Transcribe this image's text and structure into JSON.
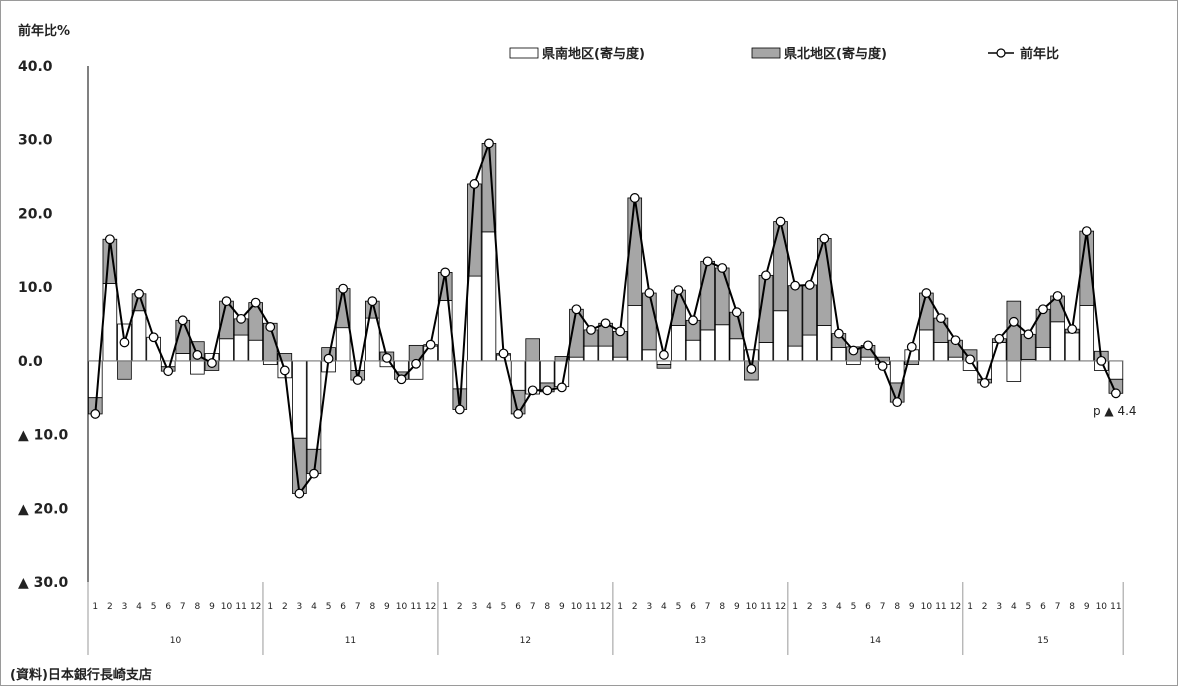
{
  "chart_data": {
    "type": "bar",
    "y_axis_title": "前年比%",
    "ylim": [
      -30,
      40
    ],
    "y_ticks": [
      {
        "value": 40,
        "label": "40.0"
      },
      {
        "value": 30,
        "label": "30.0"
      },
      {
        "value": 20,
        "label": "20.0"
      },
      {
        "value": 10,
        "label": "10.0"
      },
      {
        "value": 0,
        "label": "0.0"
      },
      {
        "value": -10,
        "label": "▲ 10.0"
      },
      {
        "value": -20,
        "label": "▲ 20.0"
      },
      {
        "value": -30,
        "label": "▲ 30.0"
      }
    ],
    "legend": [
      {
        "key": "south",
        "label": "県南地区(寄与度)",
        "color": "#ffffff"
      },
      {
        "key": "north",
        "label": "県北地区(寄与度)",
        "color": "#a6a6a6"
      },
      {
        "key": "yoy",
        "label": "前年比",
        "color": "#000000"
      }
    ],
    "years": [
      {
        "label": "10",
        "months": [
          "1",
          "2",
          "3",
          "4",
          "5",
          "6",
          "7",
          "8",
          "9",
          "10",
          "11",
          "12"
        ]
      },
      {
        "label": "11",
        "months": [
          "1",
          "2",
          "3",
          "4",
          "5",
          "6",
          "7",
          "8",
          "9",
          "10",
          "11",
          "12"
        ]
      },
      {
        "label": "12",
        "months": [
          "1",
          "2",
          "3",
          "4",
          "5",
          "6",
          "7",
          "8",
          "9",
          "10",
          "11",
          "12"
        ]
      },
      {
        "label": "13",
        "months": [
          "1",
          "2",
          "3",
          "4",
          "5",
          "6",
          "7",
          "8",
          "9",
          "10",
          "11",
          "12"
        ]
      },
      {
        "label": "14",
        "months": [
          "1",
          "2",
          "3",
          "4",
          "5",
          "6",
          "7",
          "8",
          "9",
          "10",
          "11",
          "12"
        ]
      },
      {
        "label": "15",
        "months": [
          "1",
          "2",
          "3",
          "4",
          "5",
          "6",
          "7",
          "8",
          "9",
          "10",
          "11"
        ]
      }
    ],
    "series": [
      {
        "key": "south",
        "name": "県南地区(寄与度)",
        "values": [
          -5.0,
          10.5,
          5.0,
          6.8,
          3.2,
          -0.8,
          1.0,
          -1.8,
          1.0,
          3.0,
          3.5,
          2.8,
          -0.5,
          -2.3,
          -10.5,
          -12.0,
          -1.5,
          4.5,
          -1.3,
          5.8,
          -0.8,
          -1.5,
          -2.5,
          2.0,
          8.2,
          -3.8,
          11.5,
          17.5,
          0.8,
          -4.0,
          -4.5,
          -3.0,
          -3.5,
          0.5,
          2.0,
          2.0,
          0.5,
          7.5,
          1.5,
          -0.5,
          4.8,
          2.8,
          4.2,
          4.9,
          3.0,
          1.5,
          2.5,
          6.8,
          2.0,
          3.5,
          4.8,
          1.8,
          -0.5,
          0.5,
          -0.5,
          -3.0,
          1.5,
          4.2,
          2.5,
          0.5,
          -1.3,
          -2.5,
          2.5,
          -2.8,
          0.2,
          1.8,
          5.3,
          3.8,
          7.5,
          -1.3,
          -2.5
        ]
      },
      {
        "key": "north",
        "name": "県北地区(寄与度)",
        "values": [
          -2.2,
          6.0,
          -2.5,
          2.3,
          0.0,
          -0.6,
          4.5,
          2.6,
          -1.3,
          5.1,
          2.2,
          5.1,
          5.1,
          1.0,
          -7.5,
          -3.3,
          1.8,
          5.3,
          -1.3,
          2.3,
          1.2,
          -1.0,
          2.1,
          0.2,
          3.8,
          -2.8,
          12.5,
          12.0,
          0.2,
          -3.2,
          3.0,
          -1.2,
          0.6,
          6.5,
          2.2,
          3.1,
          3.5,
          14.6,
          7.7,
          -0.5,
          4.8,
          2.7,
          9.3,
          7.7,
          3.6,
          -2.6,
          9.1,
          12.1,
          8.2,
          6.8,
          11.8,
          1.9,
          1.9,
          1.6,
          0.5,
          -2.6,
          -0.5,
          5.0,
          3.3,
          2.3,
          1.5,
          -0.5,
          0.5,
          8.1,
          3.4,
          5.2,
          3.5,
          0.5,
          10.1,
          1.3,
          -1.9
        ]
      },
      {
        "key": "yoy",
        "name": "前年比",
        "values": [
          -7.2,
          16.5,
          2.5,
          9.1,
          3.2,
          -1.4,
          5.5,
          0.8,
          -0.3,
          8.1,
          5.7,
          7.9,
          4.6,
          -1.3,
          -18.0,
          -15.3,
          0.3,
          9.8,
          -2.6,
          8.1,
          0.4,
          -2.5,
          -0.4,
          2.2,
          12.0,
          -6.6,
          24.0,
          29.5,
          1.0,
          -7.2,
          -4.0,
          -4.0,
          -3.6,
          7.0,
          4.2,
          5.1,
          4.0,
          22.1,
          9.2,
          0.8,
          9.6,
          5.5,
          13.5,
          12.6,
          6.6,
          -1.1,
          11.6,
          18.9,
          10.2,
          10.3,
          16.6,
          3.7,
          1.4,
          2.1,
          -0.7,
          -5.6,
          1.9,
          9.2,
          5.8,
          2.8,
          0.2,
          -3.0,
          3.0,
          5.3,
          3.6,
          7.0,
          8.8,
          4.3,
          17.6,
          0.0,
          -4.4
        ]
      }
    ],
    "annotation": "p ▲ 4.4"
  },
  "source_note": "(資料)日本銀行長崎支店"
}
